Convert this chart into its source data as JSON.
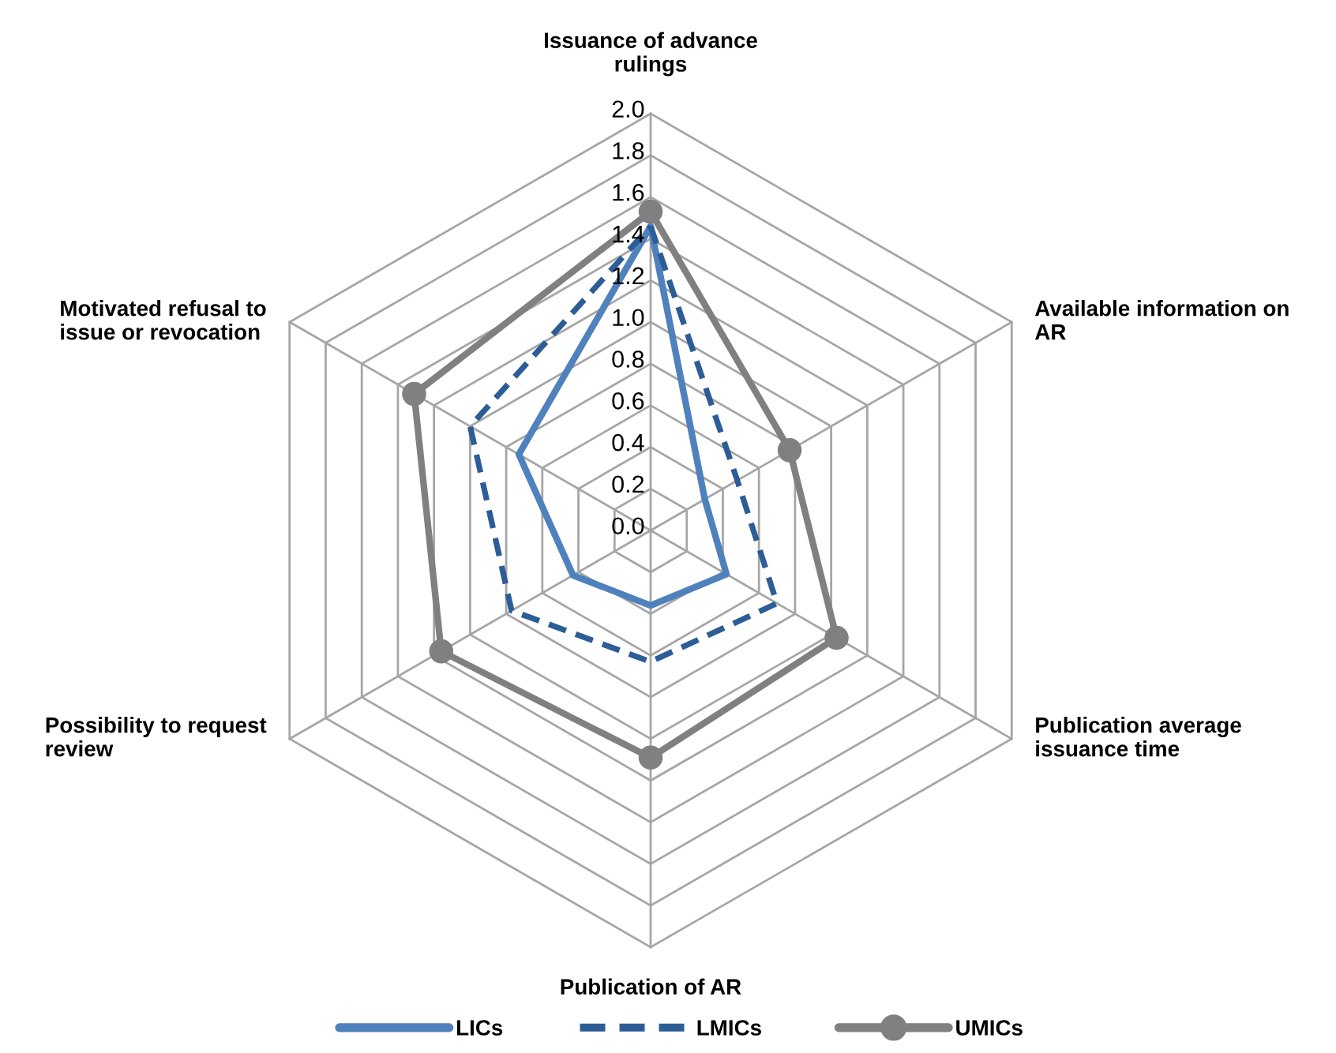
{
  "chart_data": {
    "type": "radar",
    "categories": [
      "Issuance of advance\nrulings",
      "Available information on\nAR",
      "Publication average\nissuance time",
      "Publication of AR",
      "Possibility to request\nreview",
      "Motivated refusal to\nissue or revocation"
    ],
    "ylim": [
      0,
      2.0
    ],
    "yticks": [
      {
        "value": 0,
        "label": "0.0"
      },
      0.2,
      0.4,
      0.6,
      0.8,
      {
        "value": 1,
        "label": "1.0"
      },
      1.2,
      1.4,
      1.6,
      1.8,
      {
        "value": 2,
        "label": "2.0"
      }
    ],
    "grid": true,
    "legend": "bottom",
    "series": [
      {
        "name": "LICs",
        "color": "#4f81bd",
        "line_style": "solid",
        "marker": "none",
        "values": [
          1.46,
          0.3,
          0.42,
          0.36,
          0.43,
          0.73
        ]
      },
      {
        "name": "LMICs",
        "color": "#2c5d96",
        "line_style": "dashed",
        "marker": "none",
        "values": [
          1.46,
          0.48,
          0.7,
          0.63,
          0.77,
          1.0
        ]
      },
      {
        "name": "UMICs",
        "color": "#808080",
        "line_style": "solid",
        "marker": "circle",
        "values": [
          1.53,
          0.77,
          1.03,
          1.09,
          1.16,
          1.31
        ]
      }
    ]
  }
}
